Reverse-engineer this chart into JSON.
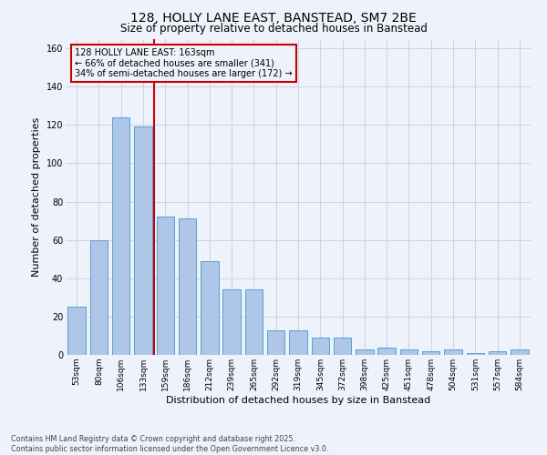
{
  "title_line1": "128, HOLLY LANE EAST, BANSTEAD, SM7 2BE",
  "title_line2": "Size of property relative to detached houses in Banstead",
  "xlabel": "Distribution of detached houses by size in Banstead",
  "ylabel": "Number of detached properties",
  "footer_line1": "Contains HM Land Registry data © Crown copyright and database right 2025.",
  "footer_line2": "Contains public sector information licensed under the Open Government Licence v3.0.",
  "categories": [
    "53sqm",
    "80sqm",
    "106sqm",
    "133sqm",
    "159sqm",
    "186sqm",
    "212sqm",
    "239sqm",
    "265sqm",
    "292sqm",
    "319sqm",
    "345sqm",
    "372sqm",
    "398sqm",
    "425sqm",
    "451sqm",
    "478sqm",
    "504sqm",
    "531sqm",
    "557sqm",
    "584sqm"
  ],
  "values": [
    25,
    60,
    124,
    119,
    72,
    71,
    49,
    34,
    34,
    13,
    13,
    9,
    9,
    3,
    4,
    3,
    2,
    3,
    1,
    2,
    3
  ],
  "bar_color": "#aec6e8",
  "bar_edge_color": "#5a9fd4",
  "red_line_x": 3.5,
  "highlight_line_color": "#cc0000",
  "annotation_text": "128 HOLLY LANE EAST: 163sqm\n← 66% of detached houses are smaller (341)\n34% of semi-detached houses are larger (172) →",
  "annotation_box_color": "#cc0000",
  "ylim": [
    0,
    165
  ],
  "yticks": [
    0,
    20,
    40,
    60,
    80,
    100,
    120,
    140,
    160
  ],
  "grid_color": "#c8d4e8",
  "bg_color": "#eef2fa",
  "title1_fontsize": 10,
  "title2_fontsize": 8.5,
  "xlabel_fontsize": 8,
  "ylabel_fontsize": 8,
  "tick_fontsize": 6.5,
  "annot_fontsize": 7,
  "footer_fontsize": 5.8
}
